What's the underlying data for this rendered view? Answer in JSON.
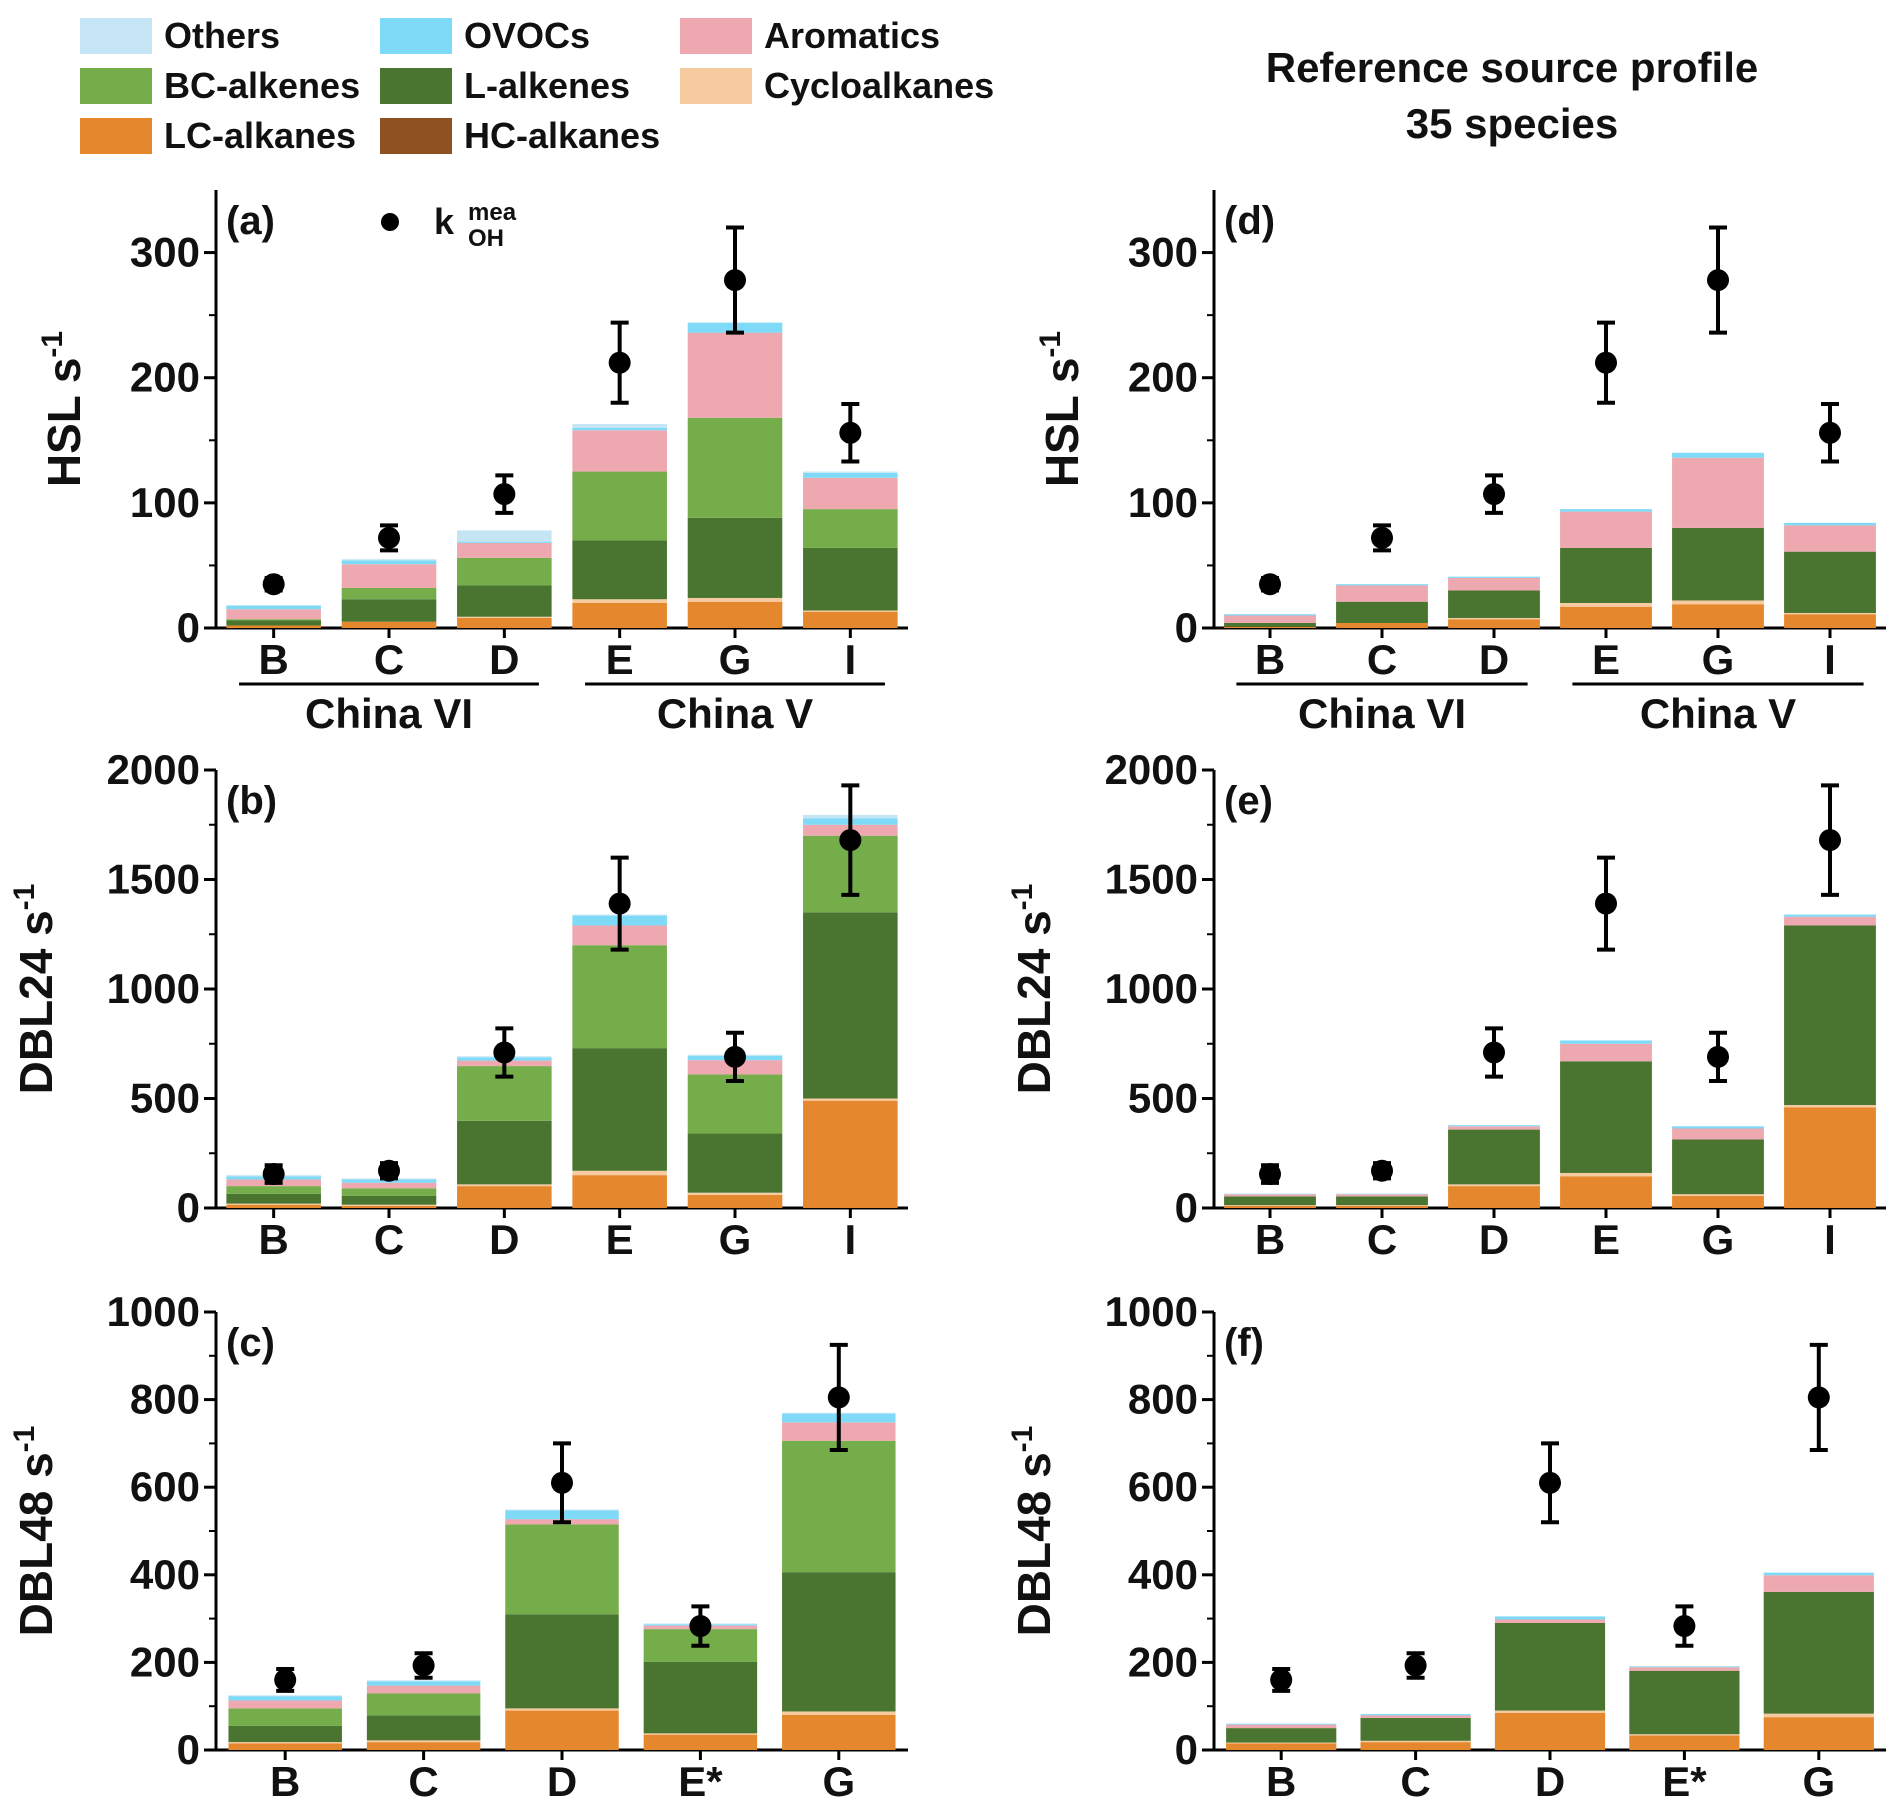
{
  "legend": {
    "items": [
      {
        "label": "Others",
        "color": "#c5e5f4"
      },
      {
        "label": "OVOCs",
        "color": "#7fdaf7"
      },
      {
        "label": "Aromatics",
        "color": "#eea8b0"
      },
      {
        "label": "BC-alkenes",
        "color": "#74ad4a"
      },
      {
        "label": "L-alkenes",
        "color": "#497531"
      },
      {
        "label": "Cycloalkanes",
        "color": "#f7cba0"
      },
      {
        "label": "LC-alkanes",
        "color": "#e5882d"
      },
      {
        "label": "HC-alkanes",
        "color": "#8f5120"
      }
    ],
    "marker_label": "k",
    "marker_sup": "mea",
    "marker_sub": "OH"
  },
  "right_title": {
    "line1": "Reference source profile",
    "line2": "35 species"
  },
  "chart_data": [
    {
      "id": "a",
      "type": "bar",
      "stacked": true,
      "panel_label": "(a)",
      "ylabel": "HSL s",
      "ylabel_sup": "-1",
      "ylim": [
        0,
        350
      ],
      "yticks": [
        0,
        100,
        200,
        300
      ],
      "categories": [
        "B",
        "C",
        "D",
        "E",
        "G",
        "I"
      ],
      "groups": [
        {
          "label": "China VI",
          "from": 0,
          "to": 2
        },
        {
          "label": "China V",
          "from": 3,
          "to": 5
        }
      ],
      "series": [
        {
          "name": "HC-alkanes",
          "values": [
            0,
            0,
            0,
            0,
            0,
            0
          ]
        },
        {
          "name": "LC-alkanes",
          "values": [
            2,
            5,
            8,
            20,
            21,
            13
          ]
        },
        {
          "name": "Cycloalkanes",
          "values": [
            0,
            0,
            1,
            3,
            3,
            1
          ]
        },
        {
          "name": "L-alkenes",
          "values": [
            4,
            18,
            25,
            47,
            64,
            50
          ]
        },
        {
          "name": "BC-alkenes",
          "values": [
            1,
            9,
            22,
            55,
            80,
            31
          ]
        },
        {
          "name": "Aromatics",
          "values": [
            8,
            19,
            12,
            33,
            68,
            25
          ]
        },
        {
          "name": "OVOCs",
          "values": [
            3,
            3,
            1,
            2,
            8,
            4
          ]
        },
        {
          "name": "Others",
          "values": [
            0,
            1,
            9,
            3,
            0,
            1
          ]
        }
      ],
      "measured": [
        35,
        72,
        107,
        212,
        278,
        156
      ],
      "err": [
        5,
        10,
        15,
        32,
        42,
        23
      ]
    },
    {
      "id": "b",
      "type": "bar",
      "stacked": true,
      "panel_label": "(b)",
      "ylabel": "DBL24 s",
      "ylabel_sup": "-1",
      "ylim": [
        0,
        2000
      ],
      "yticks": [
        0,
        500,
        1000,
        1500,
        2000
      ],
      "categories": [
        "B",
        "C",
        "D",
        "E",
        "G",
        "I"
      ],
      "series": [
        {
          "name": "HC-alkanes",
          "values": [
            0,
            0,
            0,
            0,
            0,
            0
          ]
        },
        {
          "name": "LC-alkanes",
          "values": [
            15,
            10,
            100,
            150,
            60,
            490
          ]
        },
        {
          "name": "Cycloalkanes",
          "values": [
            5,
            5,
            8,
            20,
            10,
            10
          ]
        },
        {
          "name": "L-alkenes",
          "values": [
            45,
            40,
            290,
            560,
            270,
            850
          ]
        },
        {
          "name": "BC-alkenes",
          "values": [
            35,
            35,
            250,
            470,
            270,
            350
          ]
        },
        {
          "name": "Aromatics",
          "values": [
            30,
            25,
            25,
            90,
            65,
            50
          ]
        },
        {
          "name": "OVOCs",
          "values": [
            15,
            15,
            15,
            45,
            20,
            30
          ]
        },
        {
          "name": "Others",
          "values": [
            5,
            5,
            5,
            5,
            5,
            15
          ]
        }
      ],
      "measured": [
        155,
        170,
        710,
        1390,
        690,
        1680
      ],
      "err": [
        40,
        35,
        110,
        210,
        110,
        250
      ]
    },
    {
      "id": "c",
      "type": "bar",
      "stacked": true,
      "panel_label": "(c)",
      "ylabel": "DBL48 s",
      "ylabel_sup": "-1",
      "ylim": [
        0,
        1000
      ],
      "yticks": [
        0,
        200,
        400,
        600,
        800,
        1000
      ],
      "categories": [
        "B",
        "C",
        "D",
        "E*",
        "G"
      ],
      "series": [
        {
          "name": "HC-alkanes",
          "values": [
            0,
            0,
            0,
            0,
            0
          ]
        },
        {
          "name": "LC-alkanes",
          "values": [
            15,
            18,
            90,
            35,
            80
          ]
        },
        {
          "name": "Cycloalkanes",
          "values": [
            3,
            4,
            5,
            3,
            8
          ]
        },
        {
          "name": "L-alkenes",
          "values": [
            37,
            57,
            215,
            163,
            318
          ]
        },
        {
          "name": "BC-alkenes",
          "values": [
            40,
            50,
            205,
            75,
            300
          ]
        },
        {
          "name": "Aromatics",
          "values": [
            18,
            18,
            12,
            8,
            42
          ]
        },
        {
          "name": "OVOCs",
          "values": [
            10,
            10,
            20,
            3,
            20
          ]
        },
        {
          "name": "Others",
          "values": [
            2,
            2,
            2,
            2,
            2
          ]
        }
      ],
      "measured": [
        160,
        193,
        610,
        283,
        805
      ],
      "err": [
        25,
        28,
        90,
        45,
        120
      ]
    },
    {
      "id": "d",
      "type": "bar",
      "stacked": true,
      "panel_label": "(d)",
      "ylabel": "HSL s",
      "ylabel_sup": "-1",
      "ylim": [
        0,
        350
      ],
      "yticks": [
        0,
        100,
        200,
        300
      ],
      "categories": [
        "B",
        "C",
        "D",
        "E",
        "G",
        "I"
      ],
      "groups": [
        {
          "label": "China VI",
          "from": 0,
          "to": 2
        },
        {
          "label": "China V",
          "from": 3,
          "to": 5
        }
      ],
      "series": [
        {
          "name": "HC-alkanes",
          "values": [
            0,
            0,
            0,
            0,
            0,
            0
          ]
        },
        {
          "name": "LC-alkanes",
          "values": [
            1,
            4,
            7,
            17,
            19,
            11
          ]
        },
        {
          "name": "Cycloalkanes",
          "values": [
            0,
            0,
            1,
            3,
            3,
            1
          ]
        },
        {
          "name": "L-alkenes",
          "values": [
            3,
            17,
            22,
            44,
            58,
            49
          ]
        },
        {
          "name": "BC-alkenes",
          "values": [
            0,
            0,
            0,
            0,
            0,
            0
          ]
        },
        {
          "name": "Aromatics",
          "values": [
            6,
            13,
            10,
            29,
            56,
            21
          ]
        },
        {
          "name": "OVOCs",
          "values": [
            1,
            1,
            1,
            2,
            4,
            2
          ]
        },
        {
          "name": "Others",
          "values": [
            0,
            0,
            0,
            0,
            0,
            0
          ]
        }
      ],
      "measured": [
        35,
        72,
        107,
        212,
        278,
        156
      ],
      "err": [
        5,
        10,
        15,
        32,
        42,
        23
      ]
    },
    {
      "id": "e",
      "type": "bar",
      "stacked": true,
      "panel_label": "(e)",
      "ylabel": "DBL24 s",
      "ylabel_sup": "-1",
      "ylim": [
        0,
        2000
      ],
      "yticks": [
        0,
        500,
        1000,
        1500,
        2000
      ],
      "categories": [
        "B",
        "C",
        "D",
        "E",
        "G",
        "I"
      ],
      "series": [
        {
          "name": "HC-alkanes",
          "values": [
            0,
            0,
            0,
            0,
            0,
            0
          ]
        },
        {
          "name": "LC-alkanes",
          "values": [
            10,
            10,
            100,
            145,
            55,
            460
          ]
        },
        {
          "name": "Cycloalkanes",
          "values": [
            3,
            3,
            8,
            15,
            8,
            10
          ]
        },
        {
          "name": "L-alkenes",
          "values": [
            40,
            40,
            250,
            510,
            250,
            820
          ]
        },
        {
          "name": "BC-alkenes",
          "values": [
            0,
            0,
            0,
            0,
            0,
            0
          ]
        },
        {
          "name": "Aromatics",
          "values": [
            10,
            10,
            15,
            80,
            50,
            40
          ]
        },
        {
          "name": "OVOCs",
          "values": [
            2,
            2,
            5,
            15,
            10,
            10
          ]
        },
        {
          "name": "Others",
          "values": [
            0,
            0,
            0,
            0,
            0,
            0
          ]
        }
      ],
      "measured": [
        155,
        170,
        710,
        1390,
        690,
        1680
      ],
      "err": [
        40,
        35,
        110,
        210,
        110,
        250
      ]
    },
    {
      "id": "f",
      "type": "bar",
      "stacked": true,
      "panel_label": "(f)",
      "ylabel": "DBL48 s",
      "ylabel_sup": "-1",
      "ylim": [
        0,
        1000
      ],
      "yticks": [
        0,
        200,
        400,
        600,
        800,
        1000
      ],
      "categories": [
        "B",
        "C",
        "D",
        "E*",
        "G"
      ],
      "series": [
        {
          "name": "HC-alkanes",
          "values": [
            0,
            0,
            0,
            0,
            0
          ]
        },
        {
          "name": "LC-alkanes",
          "values": [
            15,
            18,
            85,
            33,
            75
          ]
        },
        {
          "name": "Cycloalkanes",
          "values": [
            2,
            3,
            5,
            3,
            8
          ]
        },
        {
          "name": "L-alkenes",
          "values": [
            33,
            52,
            200,
            145,
            278
          ]
        },
        {
          "name": "BC-alkenes",
          "values": [
            0,
            0,
            0,
            0,
            0
          ]
        },
        {
          "name": "Aromatics",
          "values": [
            8,
            6,
            8,
            8,
            38
          ]
        },
        {
          "name": "OVOCs",
          "values": [
            2,
            3,
            7,
            2,
            6
          ]
        },
        {
          "name": "Others",
          "values": [
            0,
            0,
            0,
            0,
            0
          ]
        }
      ],
      "measured": [
        160,
        193,
        610,
        283,
        805
      ],
      "err": [
        25,
        28,
        90,
        45,
        120
      ]
    }
  ]
}
